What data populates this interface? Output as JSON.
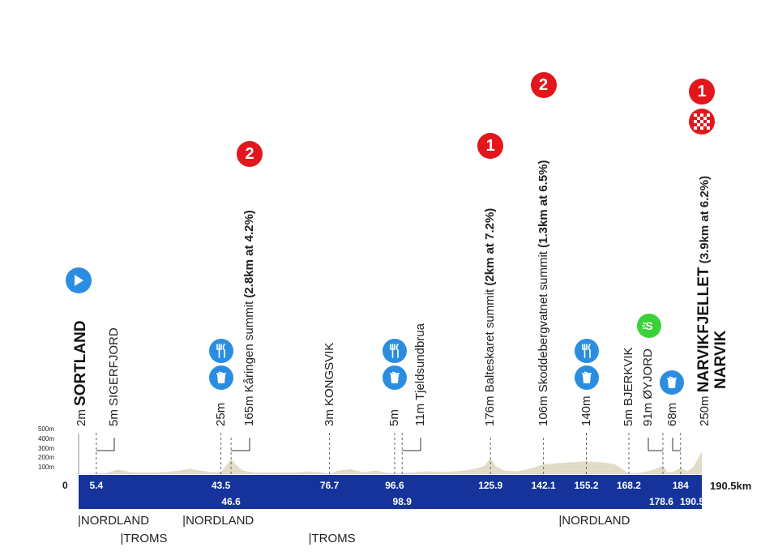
{
  "chart_data": {
    "type": "area",
    "x_unit": "km",
    "y_unit": "m",
    "yticks": [
      "500m",
      "400m",
      "300m",
      "200m",
      "100m"
    ],
    "xlim": [
      0,
      190.5
    ],
    "ylim": [
      0,
      500
    ],
    "zero_label": "0",
    "total_label": "190.5km",
    "profile": [
      [
        0,
        2
      ],
      [
        3,
        4
      ],
      [
        5.4,
        5
      ],
      [
        8,
        8
      ],
      [
        12,
        50
      ],
      [
        16,
        20
      ],
      [
        20,
        15
      ],
      [
        25,
        20
      ],
      [
        30,
        35
      ],
      [
        34,
        60
      ],
      [
        37,
        40
      ],
      [
        41,
        20
      ],
      [
        43.5,
        25
      ],
      [
        45,
        90
      ],
      [
        46.6,
        165
      ],
      [
        48,
        110
      ],
      [
        50,
        40
      ],
      [
        54,
        15
      ],
      [
        60,
        20
      ],
      [
        66,
        15
      ],
      [
        70,
        30
      ],
      [
        74,
        20
      ],
      [
        76.7,
        3
      ],
      [
        79,
        35
      ],
      [
        83,
        55
      ],
      [
        87,
        20
      ],
      [
        91,
        40
      ],
      [
        94,
        15
      ],
      [
        96.6,
        5
      ],
      [
        98.9,
        11
      ],
      [
        102,
        20
      ],
      [
        107,
        30
      ],
      [
        112,
        25
      ],
      [
        117,
        35
      ],
      [
        121,
        55
      ],
      [
        124,
        90
      ],
      [
        125.9,
        176
      ],
      [
        127.5,
        90
      ],
      [
        130,
        40
      ],
      [
        134,
        30
      ],
      [
        138,
        60
      ],
      [
        142.1,
        106
      ],
      [
        146,
        120
      ],
      [
        150,
        130
      ],
      [
        155.2,
        140
      ],
      [
        160,
        130
      ],
      [
        164,
        110
      ],
      [
        168.2,
        5
      ],
      [
        171,
        10
      ],
      [
        175,
        40
      ],
      [
        178.6,
        91
      ],
      [
        180,
        20
      ],
      [
        182,
        30
      ],
      [
        184,
        68
      ],
      [
        186,
        30
      ],
      [
        188,
        80
      ],
      [
        190.5,
        250
      ]
    ],
    "distance_labels": [
      {
        "km": 5.4,
        "text": "5.4",
        "row": 1
      },
      {
        "km": 43.5,
        "text": "43.5",
        "row": 1
      },
      {
        "km": 46.6,
        "text": "46.6",
        "row": 2
      },
      {
        "km": 76.7,
        "text": "76.7",
        "row": 1
      },
      {
        "km": 96.6,
        "text": "96.6",
        "row": 1
      },
      {
        "km": 98.9,
        "text": "98.9",
        "row": 2
      },
      {
        "km": 125.9,
        "text": "125.9",
        "row": 1
      },
      {
        "km": 142.1,
        "text": "142.1",
        "row": 1
      },
      {
        "km": 155.2,
        "text": "155.2",
        "row": 1
      },
      {
        "km": 168.2,
        "text": "168.2",
        "row": 1
      },
      {
        "km": 178.6,
        "text": "178.6",
        "row": 2
      },
      {
        "km": 184,
        "text": "184",
        "row": 1
      },
      {
        "km": 190.5,
        "text": "190.5",
        "row": 2
      }
    ],
    "points": [
      {
        "km": 0,
        "alt": "2m",
        "name": "SORTLAND",
        "kind": "start",
        "icon": "start-arrow-icon"
      },
      {
        "km": 5.4,
        "alt": "5m",
        "name": "SIGERFJORD",
        "kind": "town"
      },
      {
        "km": 43.5,
        "alt": "25m",
        "name": "",
        "kind": "feed",
        "icon": "feed-zone-icon"
      },
      {
        "km": 46.6,
        "alt": "165m",
        "name": "Kåringen summit",
        "climb": "(2.8km at 4.2%)",
        "kind": "kom",
        "category": "2"
      },
      {
        "km": 76.7,
        "alt": "3m",
        "name": "KONGSVIK",
        "kind": "town"
      },
      {
        "km": 96.6,
        "alt": "5m",
        "name": "",
        "kind": "feed",
        "icon": "feed-zone-icon"
      },
      {
        "km": 98.9,
        "alt": "11m",
        "name": "Tjeldsundbrua",
        "kind": "town"
      },
      {
        "km": 125.9,
        "alt": "176m",
        "name": "Balteskaret summit",
        "climb": "(2km at 7.2%)",
        "kind": "kom",
        "category": "1"
      },
      {
        "km": 142.1,
        "alt": "106m",
        "name": "Skoddebergvatnet summit",
        "climb": "(1.3km at 6.5%)",
        "kind": "kom",
        "category": "2"
      },
      {
        "km": 155.2,
        "alt": "140m",
        "name": "",
        "kind": "feed",
        "icon": "feed-zone-icon"
      },
      {
        "km": 168.2,
        "alt": "5m",
        "name": "BJERKVIK",
        "kind": "town"
      },
      {
        "km": 178.6,
        "alt": "91m",
        "name": "ØYJORD",
        "kind": "sprint",
        "icon": "sprint-icon"
      },
      {
        "km": 184,
        "alt": "68m",
        "name": "",
        "kind": "waste",
        "icon": "waste-zone-icon"
      },
      {
        "km": 190.5,
        "alt": "250m",
        "name": "NARVIKFJELLET",
        "climb": "(3.9km at 6.2%)",
        "name2": "NARVIK",
        "kind": "finish",
        "category": "1",
        "icon": "finish-flag-icon"
      }
    ],
    "regions": [
      {
        "km": 0,
        "text": "|NORDLAND",
        "row": 1
      },
      {
        "km": 13,
        "text": "|TROMS",
        "row": 2
      },
      {
        "km": 32,
        "text": "|NORDLAND",
        "row": 1
      },
      {
        "km": 70.5,
        "text": "|TROMS",
        "row": 2
      },
      {
        "km": 147,
        "text": "|NORDLAND",
        "row": 1
      }
    ],
    "colors": {
      "bar": "#15339b",
      "profile_fill": "#ddd9c0",
      "kom": "#e3161b",
      "icon_blue": "#2b8de0",
      "sprint": "#39d23a"
    }
  }
}
